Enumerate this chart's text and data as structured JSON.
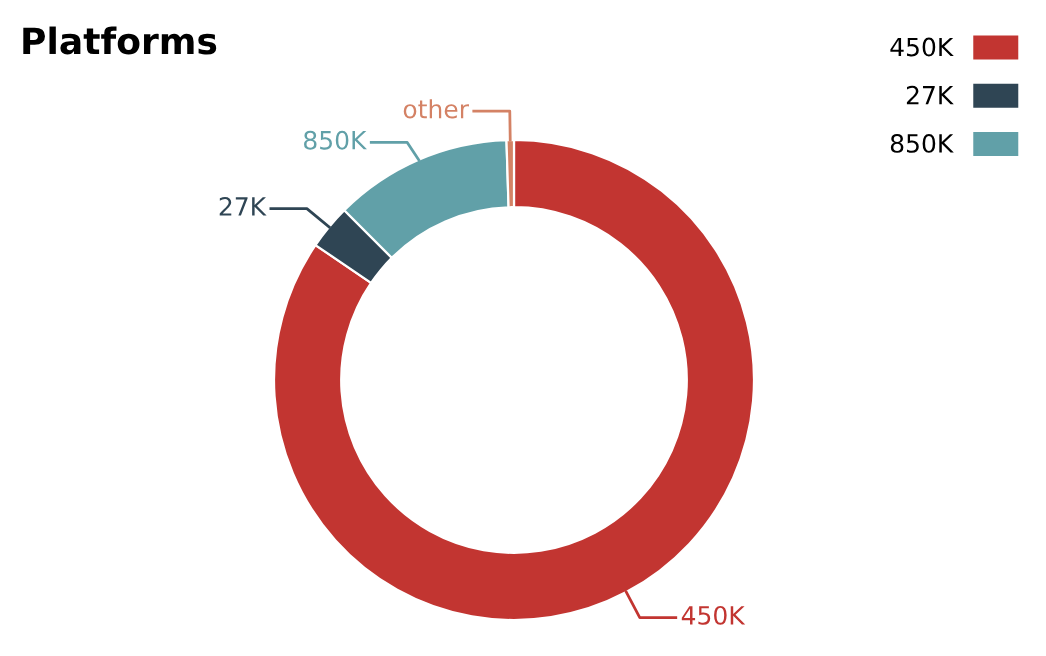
{
  "chart_data": {
    "type": "donut",
    "title": "Platforms",
    "categories": [
      "450K",
      "27K",
      "850K",
      "other"
    ],
    "values": [
      84.5,
      3,
      12,
      0.5
    ],
    "colors": [
      "#c23531",
      "#2f4554",
      "#61a0a8",
      "#d48265"
    ],
    "legend": "top right"
  }
}
